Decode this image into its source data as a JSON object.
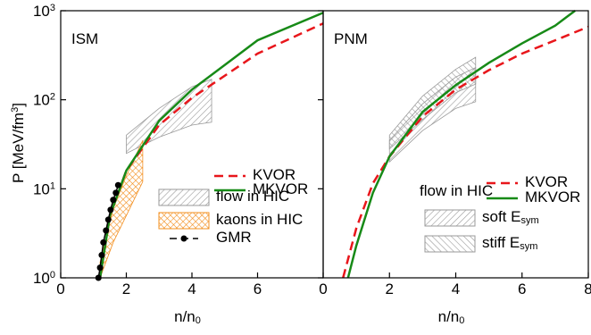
{
  "chart_data": [
    {
      "type": "line",
      "panel_label": "ISM",
      "ylabel": "P [MeV/fm^3]",
      "xlabel": "n/n_0",
      "xlim": [
        0,
        8
      ],
      "xticks": [
        0,
        2,
        4,
        6
      ],
      "ylim": [
        1,
        1000
      ],
      "log_y": true,
      "yticks": [
        {
          "value": 1,
          "label": "10^0"
        },
        {
          "value": 10,
          "label": "10^1"
        },
        {
          "value": 100,
          "label": "10^2"
        },
        {
          "value": 1000,
          "label": "10^3"
        }
      ],
      "series": [
        {
          "name": "KVOR",
          "color": "#e8161b",
          "style": "dashed",
          "x": [
            1.2,
            1.5,
            2,
            3,
            4,
            6,
            8
          ],
          "values": [
            1,
            5,
            16,
            52,
            105,
            330,
            720
          ]
        },
        {
          "name": "MKVOR",
          "color": "#178a17",
          "style": "solid",
          "x": [
            1.2,
            1.5,
            2,
            3,
            4,
            6,
            8
          ],
          "values": [
            1,
            5,
            16,
            58,
            130,
            465,
            950
          ]
        },
        {
          "name": "GMR",
          "color": "#000000",
          "style": "dots",
          "x": [
            1.15,
            1.2,
            1.25,
            1.3,
            1.38,
            1.45,
            1.52,
            1.6,
            1.68,
            1.75
          ],
          "values": [
            1,
            1.3,
            1.8,
            2.5,
            3.4,
            4.5,
            5.8,
            7.5,
            9,
            11
          ]
        }
      ],
      "bands": [
        {
          "name": "flow in HIC",
          "color": "#9a9a9a",
          "hatch": "diagonal",
          "x": [
            2,
            3,
            4,
            4.6
          ],
          "lower": [
            25,
            38,
            52,
            56
          ],
          "upper": [
            40,
            80,
            140,
            170
          ]
        },
        {
          "name": "kaons in HIC",
          "color": "#f39021",
          "hatch": "cross",
          "x": [
            1.2,
            1.6,
            2,
            2.5
          ],
          "lower": [
            1,
            2.5,
            5,
            12
          ],
          "upper": [
            1.5,
            6,
            14,
            35
          ]
        }
      ]
    },
    {
      "type": "line",
      "panel_label": "PNM",
      "xlabel": "n/n_0",
      "xlim": [
        0,
        8
      ],
      "xticks": [
        0,
        2,
        4,
        6,
        8
      ],
      "ylim": [
        1,
        1000
      ],
      "log_y": true,
      "legend_title": "flow in HIC",
      "series": [
        {
          "name": "KVOR",
          "color": "#e8161b",
          "style": "dashed",
          "x": [
            0.6,
            1,
            1.5,
            2,
            3,
            4,
            5,
            6,
            7,
            8
          ],
          "values": [
            1,
            3.6,
            11.5,
            23,
            65,
            130,
            215,
            330,
            465,
            660
          ]
        },
        {
          "name": "MKVOR",
          "color": "#178a17",
          "style": "solid",
          "x": [
            0.75,
            1,
            1.5,
            2,
            3,
            4,
            5,
            6,
            7,
            7.6
          ],
          "values": [
            1,
            2.3,
            9,
            23,
            73,
            146,
            260,
            430,
            680,
            1000
          ]
        }
      ],
      "bands": [
        {
          "name": "soft E_sym",
          "color": "#9a9a9a",
          "hatch": "diagonal",
          "x": [
            2,
            3,
            4,
            4.6
          ],
          "lower": [
            20,
            45,
            80,
            95
          ],
          "upper": [
            35,
            90,
            180,
            230
          ]
        },
        {
          "name": "stiff E_sym",
          "color": "#9a9a9a",
          "hatch": "diagonal2",
          "x": [
            2,
            3,
            4,
            4.6
          ],
          "lower": [
            28,
            60,
            120,
            150
          ],
          "upper": [
            40,
            110,
            220,
            300
          ]
        }
      ]
    }
  ]
}
